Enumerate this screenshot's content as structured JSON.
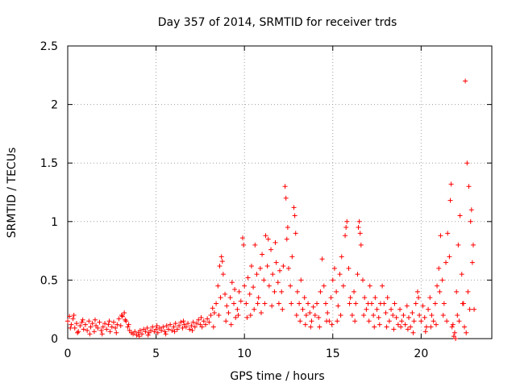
{
  "chart_data": {
    "type": "scatter",
    "title": "Day 357 of 2014, SRMTID for receiver trds",
    "xlabel": "GPS time / hours",
    "ylabel": "SRMTID / TECUs",
    "xlim": [
      0,
      24
    ],
    "ylim": [
      0,
      2.5
    ],
    "xticks": [
      0,
      5,
      10,
      15,
      20
    ],
    "xtick_labels": [
      "0",
      "5",
      "10",
      "15",
      "20"
    ],
    "yticks": [
      0,
      0.5,
      1,
      1.5,
      2,
      2.5
    ],
    "ytick_labels": [
      "0",
      "0.5",
      "1",
      "1.5",
      "2",
      "2.5"
    ],
    "grid": true,
    "marker": "+",
    "color": "#ff0000",
    "series": [
      {
        "name": "SRMTID",
        "points": [
          [
            0.0,
            0.15
          ],
          [
            0.1,
            0.19
          ],
          [
            0.2,
            0.12
          ],
          [
            0.3,
            0.17
          ],
          [
            0.4,
            0.09
          ],
          [
            0.5,
            0.13
          ],
          [
            0.6,
            0.06
          ],
          [
            0.7,
            0.11
          ],
          [
            0.8,
            0.14
          ],
          [
            0.9,
            0.08
          ],
          [
            1.0,
            0.12
          ],
          [
            1.1,
            0.07
          ],
          [
            1.2,
            0.15
          ],
          [
            1.3,
            0.1
          ],
          [
            1.4,
            0.13
          ],
          [
            1.5,
            0.06
          ],
          [
            1.6,
            0.11
          ],
          [
            1.7,
            0.09
          ],
          [
            1.8,
            0.14
          ],
          [
            1.9,
            0.07
          ],
          [
            2.0,
            0.1
          ],
          [
            2.1,
            0.13
          ],
          [
            2.2,
            0.08
          ],
          [
            2.3,
            0.12
          ],
          [
            2.4,
            0.06
          ],
          [
            2.5,
            0.1
          ],
          [
            2.6,
            0.14
          ],
          [
            2.7,
            0.09
          ],
          [
            2.8,
            0.12
          ],
          [
            2.9,
            0.17
          ],
          [
            3.0,
            0.11
          ],
          [
            3.1,
            0.19
          ],
          [
            3.2,
            0.22
          ],
          [
            3.3,
            0.15
          ],
          [
            3.4,
            0.1
          ],
          [
            3.5,
            0.07
          ],
          [
            3.6,
            0.05
          ],
          [
            3.7,
            0.04
          ],
          [
            3.8,
            0.06
          ],
          [
            3.9,
            0.03
          ],
          [
            4.0,
            0.05
          ],
          [
            4.1,
            0.07
          ],
          [
            4.2,
            0.04
          ],
          [
            4.3,
            0.08
          ],
          [
            4.4,
            0.06
          ],
          [
            4.5,
            0.09
          ],
          [
            4.6,
            0.05
          ],
          [
            4.7,
            0.07
          ],
          [
            4.8,
            0.1
          ],
          [
            4.9,
            0.06
          ],
          [
            5.0,
            0.08
          ],
          [
            5.1,
            0.05
          ],
          [
            5.2,
            0.09
          ],
          [
            5.3,
            0.07
          ],
          [
            5.4,
            0.1
          ],
          [
            5.5,
            0.06
          ],
          [
            5.6,
            0.11
          ],
          [
            5.7,
            0.08
          ],
          [
            5.8,
            0.12
          ],
          [
            5.9,
            0.07
          ],
          [
            6.0,
            0.1
          ],
          [
            6.1,
            0.13
          ],
          [
            6.2,
            0.08
          ],
          [
            6.3,
            0.11
          ],
          [
            6.4,
            0.14
          ],
          [
            6.5,
            0.09
          ],
          [
            6.6,
            0.12
          ],
          [
            6.7,
            0.1
          ],
          [
            6.8,
            0.13
          ],
          [
            6.9,
            0.08
          ],
          [
            7.0,
            0.11
          ],
          [
            7.1,
            0.14
          ],
          [
            7.2,
            0.1
          ],
          [
            7.3,
            0.13
          ],
          [
            7.4,
            0.16
          ],
          [
            7.5,
            0.12
          ],
          [
            7.6,
            0.1
          ],
          [
            7.7,
            0.15
          ],
          [
            7.8,
            0.12
          ],
          [
            7.9,
            0.17
          ],
          [
            8.0,
            0.14
          ],
          [
            8.1,
            0.2
          ],
          [
            8.2,
            0.26
          ],
          [
            8.3,
            0.22
          ],
          [
            8.4,
            0.3
          ],
          [
            8.5,
            0.45
          ],
          [
            8.6,
            0.62
          ],
          [
            8.7,
            0.7
          ],
          [
            8.8,
            0.55
          ],
          [
            8.9,
            0.38
          ],
          [
            9.0,
            0.28
          ],
          [
            9.1,
            0.22
          ],
          [
            9.2,
            0.35
          ],
          [
            9.3,
            0.48
          ],
          [
            9.4,
            0.3
          ],
          [
            9.5,
            0.18
          ],
          [
            9.6,
            0.25
          ],
          [
            9.7,
            0.4
          ],
          [
            9.8,
            0.32
          ],
          [
            9.9,
            0.86
          ],
          [
            10.0,
            0.45
          ],
          [
            10.1,
            0.3
          ],
          [
            10.2,
            0.52
          ],
          [
            10.3,
            0.38
          ],
          [
            10.4,
            0.62
          ],
          [
            10.5,
            0.44
          ],
          [
            10.6,
            0.8
          ],
          [
            10.7,
            0.55
          ],
          [
            10.8,
            0.35
          ],
          [
            10.9,
            0.6
          ],
          [
            11.0,
            0.72
          ],
          [
            11.1,
            0.5
          ],
          [
            11.2,
            0.88
          ],
          [
            11.3,
            0.62
          ],
          [
            11.4,
            0.45
          ],
          [
            11.5,
            0.76
          ],
          [
            11.6,
            0.55
          ],
          [
            11.7,
            0.4
          ],
          [
            11.8,
            0.65
          ],
          [
            11.9,
            0.48
          ],
          [
            12.0,
            0.58
          ],
          [
            12.1,
            0.4
          ],
          [
            12.2,
            0.62
          ],
          [
            12.3,
            1.3
          ],
          [
            12.4,
            0.85
          ],
          [
            12.5,
            0.6
          ],
          [
            12.6,
            0.45
          ],
          [
            12.7,
            0.7
          ],
          [
            12.8,
            1.12
          ],
          [
            12.9,
            0.9
          ],
          [
            13.0,
            0.4
          ],
          [
            13.1,
            0.3
          ],
          [
            13.2,
            0.5
          ],
          [
            13.3,
            0.25
          ],
          [
            13.4,
            0.35
          ],
          [
            13.5,
            0.2
          ],
          [
            13.6,
            0.3
          ],
          [
            13.7,
            0.22
          ],
          [
            13.8,
            0.15
          ],
          [
            13.9,
            0.27
          ],
          [
            14.0,
            0.2
          ],
          [
            14.1,
            0.3
          ],
          [
            14.2,
            0.18
          ],
          [
            14.3,
            0.4
          ],
          [
            14.4,
            0.68
          ],
          [
            14.5,
            0.45
          ],
          [
            14.6,
            0.3
          ],
          [
            14.7,
            0.22
          ],
          [
            14.8,
            0.15
          ],
          [
            14.9,
            0.35
          ],
          [
            15.0,
            0.5
          ],
          [
            15.1,
            0.6
          ],
          [
            15.2,
            0.4
          ],
          [
            15.3,
            0.28
          ],
          [
            15.4,
            0.55
          ],
          [
            15.5,
            0.7
          ],
          [
            15.6,
            0.45
          ],
          [
            15.7,
            0.88
          ],
          [
            15.8,
            1.0
          ],
          [
            15.9,
            0.6
          ],
          [
            16.0,
            0.35
          ],
          [
            16.1,
            0.2
          ],
          [
            16.2,
            0.4
          ],
          [
            16.3,
            0.3
          ],
          [
            16.4,
            0.55
          ],
          [
            16.5,
            1.0
          ],
          [
            16.6,
            0.8
          ],
          [
            16.7,
            0.5
          ],
          [
            16.8,
            0.35
          ],
          [
            16.9,
            0.25
          ],
          [
            17.0,
            0.3
          ],
          [
            17.1,
            0.45
          ],
          [
            17.2,
            0.3
          ],
          [
            17.3,
            0.2
          ],
          [
            17.4,
            0.35
          ],
          [
            17.5,
            0.25
          ],
          [
            17.6,
            0.18
          ],
          [
            17.7,
            0.3
          ],
          [
            17.8,
            0.45
          ],
          [
            17.9,
            0.3
          ],
          [
            18.0,
            0.22
          ],
          [
            18.1,
            0.35
          ],
          [
            18.2,
            0.15
          ],
          [
            18.3,
            0.25
          ],
          [
            18.4,
            0.2
          ],
          [
            18.5,
            0.3
          ],
          [
            18.6,
            0.18
          ],
          [
            18.7,
            0.12
          ],
          [
            18.8,
            0.25
          ],
          [
            18.9,
            0.15
          ],
          [
            19.0,
            0.2
          ],
          [
            19.1,
            0.12
          ],
          [
            19.2,
            0.28
          ],
          [
            19.3,
            0.18
          ],
          [
            19.4,
            0.1
          ],
          [
            19.5,
            0.22
          ],
          [
            19.6,
            0.15
          ],
          [
            19.7,
            0.3
          ],
          [
            19.8,
            0.4
          ],
          [
            19.9,
            0.2
          ],
          [
            20.0,
            0.15
          ],
          [
            20.1,
            0.28
          ],
          [
            20.2,
            0.18
          ],
          [
            20.3,
            0.1
          ],
          [
            20.4,
            0.25
          ],
          [
            20.5,
            0.35
          ],
          [
            20.6,
            0.2
          ],
          [
            20.7,
            0.15
          ],
          [
            20.8,
            0.3
          ],
          [
            20.9,
            0.45
          ],
          [
            21.0,
            0.6
          ],
          [
            21.1,
            0.88
          ],
          [
            21.2,
            0.5
          ],
          [
            21.3,
            0.3
          ],
          [
            21.4,
            0.65
          ],
          [
            21.5,
            0.9
          ],
          [
            21.6,
            0.7
          ],
          [
            21.7,
            1.32
          ],
          [
            21.8,
            0.12
          ],
          [
            21.9,
            0.05
          ],
          [
            22.0,
            0.4
          ],
          [
            22.1,
            0.8
          ],
          [
            22.2,
            1.05
          ],
          [
            22.3,
            0.55
          ],
          [
            22.4,
            0.3
          ],
          [
            22.5,
            2.2
          ],
          [
            22.6,
            1.5
          ],
          [
            22.7,
            1.3
          ],
          [
            22.8,
            1.0
          ],
          [
            22.9,
            0.65
          ],
          [
            0.15,
            0.09
          ],
          [
            0.35,
            0.2
          ],
          [
            0.55,
            0.05
          ],
          [
            0.85,
            0.16
          ],
          [
            1.25,
            0.04
          ],
          [
            1.55,
            0.16
          ],
          [
            1.95,
            0.04
          ],
          [
            2.35,
            0.15
          ],
          [
            2.75,
            0.05
          ],
          [
            3.05,
            0.2
          ],
          [
            3.25,
            0.16
          ],
          [
            3.45,
            0.12
          ],
          [
            4.05,
            0.02
          ],
          [
            4.55,
            0.03
          ],
          [
            5.05,
            0.11
          ],
          [
            5.55,
            0.04
          ],
          [
            6.05,
            0.06
          ],
          [
            6.55,
            0.15
          ],
          [
            7.05,
            0.07
          ],
          [
            7.55,
            0.18
          ],
          [
            8.25,
            0.1
          ],
          [
            8.55,
            0.2
          ],
          [
            8.65,
            0.35
          ],
          [
            8.75,
            0.66
          ],
          [
            8.95,
            0.15
          ],
          [
            9.25,
            0.12
          ],
          [
            9.45,
            0.42
          ],
          [
            9.65,
            0.2
          ],
          [
            9.95,
            0.8
          ],
          [
            10.15,
            0.18
          ],
          [
            10.35,
            0.2
          ],
          [
            10.55,
            0.25
          ],
          [
            10.75,
            0.3
          ],
          [
            10.95,
            0.22
          ],
          [
            11.15,
            0.3
          ],
          [
            11.35,
            0.85
          ],
          [
            11.55,
            0.28
          ],
          [
            11.75,
            0.82
          ],
          [
            11.95,
            0.3
          ],
          [
            12.15,
            0.25
          ],
          [
            12.35,
            1.2
          ],
          [
            12.45,
            0.95
          ],
          [
            12.65,
            0.3
          ],
          [
            12.85,
            1.05
          ],
          [
            12.95,
            0.2
          ],
          [
            13.15,
            0.15
          ],
          [
            13.45,
            0.12
          ],
          [
            13.75,
            0.1
          ],
          [
            14.25,
            0.1
          ],
          [
            14.65,
            0.15
          ],
          [
            14.95,
            0.12
          ],
          [
            15.25,
            0.15
          ],
          [
            15.45,
            0.2
          ],
          [
            15.75,
            0.95
          ],
          [
            15.95,
            0.3
          ],
          [
            16.25,
            0.15
          ],
          [
            16.45,
            0.95
          ],
          [
            16.55,
            0.9
          ],
          [
            16.75,
            0.2
          ],
          [
            17.05,
            0.15
          ],
          [
            17.35,
            0.1
          ],
          [
            17.65,
            0.12
          ],
          [
            18.05,
            0.1
          ],
          [
            18.45,
            0.08
          ],
          [
            18.85,
            0.1
          ],
          [
            19.25,
            0.08
          ],
          [
            19.55,
            0.05
          ],
          [
            19.85,
            0.35
          ],
          [
            20.25,
            0.06
          ],
          [
            20.55,
            0.1
          ],
          [
            20.85,
            0.12
          ],
          [
            21.05,
            0.4
          ],
          [
            21.25,
            0.2
          ],
          [
            21.45,
            0.15
          ],
          [
            21.65,
            1.18
          ],
          [
            21.75,
            0.1
          ],
          [
            21.85,
            0.02
          ],
          [
            21.95,
            0.0
          ],
          [
            22.05,
            0.2
          ],
          [
            22.15,
            0.15
          ],
          [
            22.35,
            0.3
          ],
          [
            22.45,
            0.1
          ],
          [
            22.55,
            0.05
          ],
          [
            22.65,
            0.4
          ],
          [
            22.75,
            0.25
          ],
          [
            22.85,
            1.1
          ],
          [
            22.95,
            0.8
          ],
          [
            23.0,
            0.25
          ]
        ]
      }
    ]
  }
}
